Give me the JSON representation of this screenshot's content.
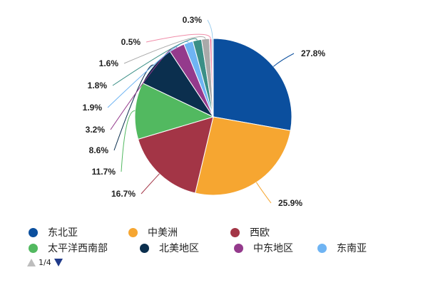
{
  "chart_data": {
    "type": "pie",
    "title": "",
    "start_angle_deg": 0,
    "direction": "clockwise",
    "slices": [
      {
        "name": "东北亚",
        "value": 27.8,
        "label": "27.8%",
        "color": "#0b4f9e"
      },
      {
        "name": "中美洲",
        "value": 25.9,
        "label": "25.9%",
        "color": "#f6a631"
      },
      {
        "name": "西欧",
        "value": 16.7,
        "label": "16.7%",
        "color": "#a33546"
      },
      {
        "name": "太平洋西南部",
        "value": 11.7,
        "label": "11.7%",
        "color": "#52b960"
      },
      {
        "name": "北美地区",
        "value": 8.6,
        "label": "8.6%",
        "color": "#0b2f4e"
      },
      {
        "name": "中东地区",
        "value": 3.2,
        "label": "3.2%",
        "color": "#943a8c"
      },
      {
        "name": "东南亚",
        "value": 1.9,
        "label": "1.9%",
        "color": "#6fb4f3"
      },
      {
        "name": "",
        "value": 1.8,
        "label": "1.8%",
        "color": "#3a8f86"
      },
      {
        "name": "",
        "value": 1.6,
        "label": "1.6%",
        "color": "#a9a9a9"
      },
      {
        "name": "",
        "value": 0.5,
        "label": "0.5%",
        "color": "#f08ca8"
      },
      {
        "name": "",
        "value": 0.3,
        "label": "0.3%",
        "color": "#9fcfee"
      }
    ]
  },
  "legend": {
    "items": [
      {
        "label": "东北亚",
        "color": "#0b4f9e"
      },
      {
        "label": "中美洲",
        "color": "#f6a631"
      },
      {
        "label": "西欧",
        "color": "#a33546"
      },
      {
        "label": "太平洋西南部",
        "color": "#52b960"
      },
      {
        "label": "北美地区",
        "color": "#0b2f4e"
      },
      {
        "label": "中东地区",
        "color": "#943a8c"
      },
      {
        "label": "东南亚",
        "color": "#6fb4f3"
      }
    ],
    "page_text": "1/4"
  }
}
